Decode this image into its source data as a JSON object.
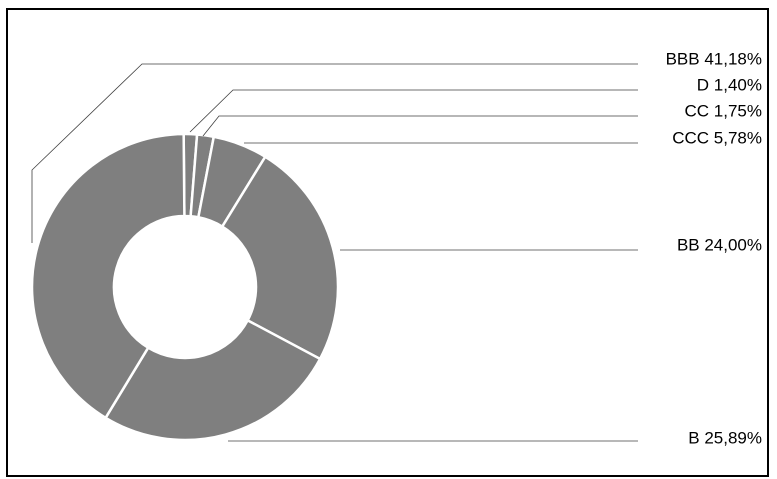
{
  "chart_data": {
    "type": "pie",
    "donut": true,
    "slice_color": "#7f7f7f",
    "separator_color": "#ffffff",
    "leader_color": "#404040",
    "slices": [
      {
        "name": "D",
        "value": 1.4,
        "label": "D 1,40%"
      },
      {
        "name": "CC",
        "value": 1.75,
        "label": "CC 1,75%"
      },
      {
        "name": "CCC",
        "value": 5.78,
        "label": "CCC 5,78%"
      },
      {
        "name": "BB",
        "value": 24.0,
        "label": "BB 24,00%"
      },
      {
        "name": "B",
        "value": 25.89,
        "label": "B 25,89%"
      },
      {
        "name": "BBB",
        "value": 41.18,
        "label": "BBB 41,18%"
      }
    ]
  }
}
